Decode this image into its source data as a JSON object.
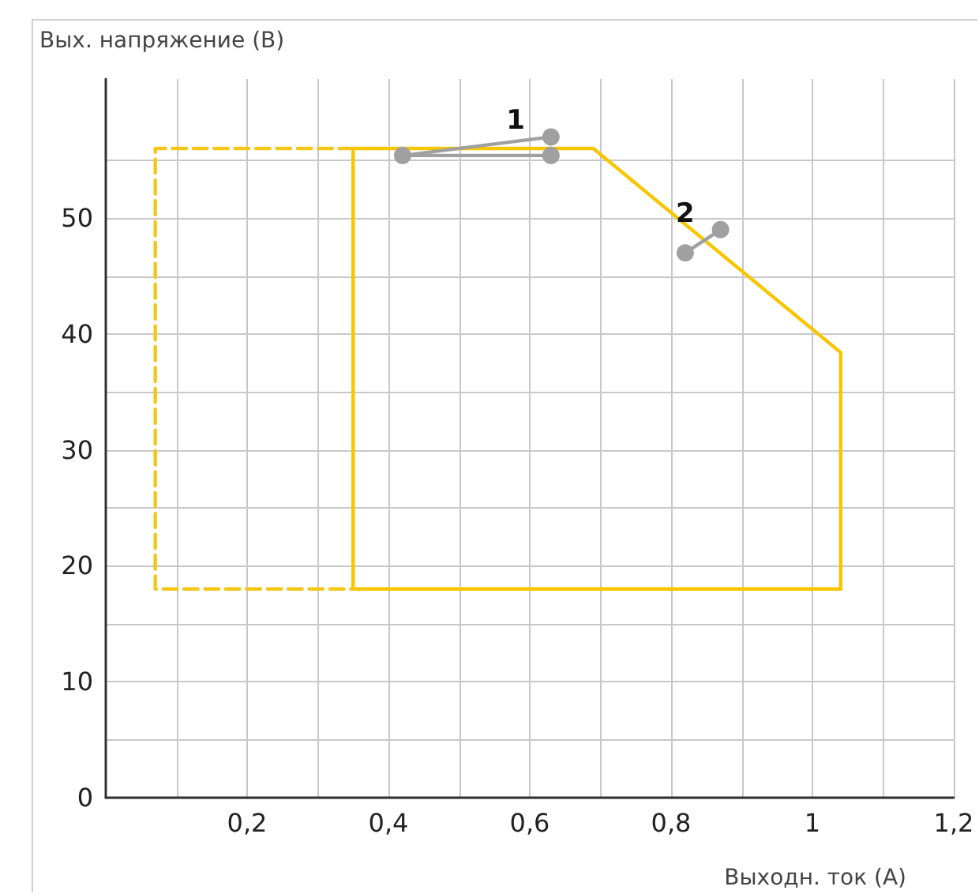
{
  "chart_data": {
    "type": "line",
    "xlabel": "Выходн. ток (А)",
    "ylabel": "Вых. напряжение (В)",
    "xlim": [
      0,
      1.2
    ],
    "ylim": [
      0,
      62
    ],
    "xticks": [
      {
        "value": 0.1,
        "label": null
      },
      {
        "value": 0.2,
        "label": "0,2"
      },
      {
        "value": 0.3,
        "label": null
      },
      {
        "value": 0.4,
        "label": "0,4"
      },
      {
        "value": 0.5,
        "label": null
      },
      {
        "value": 0.6,
        "label": "0,6"
      },
      {
        "value": 0.7,
        "label": null
      },
      {
        "value": 0.8,
        "label": "0,8"
      },
      {
        "value": 0.9,
        "label": null
      },
      {
        "value": 1,
        "label": "1"
      },
      {
        "value": 1.1,
        "label": null
      },
      {
        "value": 1.2,
        "label": "1,2"
      }
    ],
    "yticks": [
      0,
      {
        "value": 5,
        "label": null
      },
      10,
      {
        "value": 15,
        "label": null
      },
      20,
      {
        "value": 25,
        "label": null
      },
      30,
      {
        "value": 35,
        "label": null
      },
      40,
      {
        "value": 45,
        "label": null
      },
      50,
      {
        "value": 55,
        "label": null
      }
    ],
    "grid": true,
    "series": [
      {
        "color": "#f7c600",
        "line_style": "solid",
        "marker": "none",
        "x": [
          0.35,
          0.35,
          0.69,
          1.04,
          1.04
        ],
        "values": [
          18,
          56,
          56,
          38.4,
          18
        ]
      },
      {
        "color": "#f7c600",
        "line_style": "solid",
        "marker": "none",
        "x": [
          0.35,
          1.04
        ],
        "values": [
          18,
          18
        ]
      },
      {
        "color": "#f5c518",
        "line_style": "dashed",
        "marker": "none",
        "x": [
          0.35,
          0.07,
          0.07,
          0.35
        ],
        "values": [
          56,
          56,
          18,
          18
        ]
      },
      {
        "name": "1",
        "color": "#a0a0a0",
        "line_style": "solid",
        "marker": "circle",
        "x": [
          0.63,
          0.42,
          0.63
        ],
        "values": [
          57,
          55.4,
          55.4
        ]
      },
      {
        "name": "2",
        "color": "#a0a0a0",
        "line_style": "solid",
        "marker": "circle",
        "x": [
          0.82,
          0.87
        ],
        "values": [
          47,
          49
        ]
      }
    ]
  }
}
